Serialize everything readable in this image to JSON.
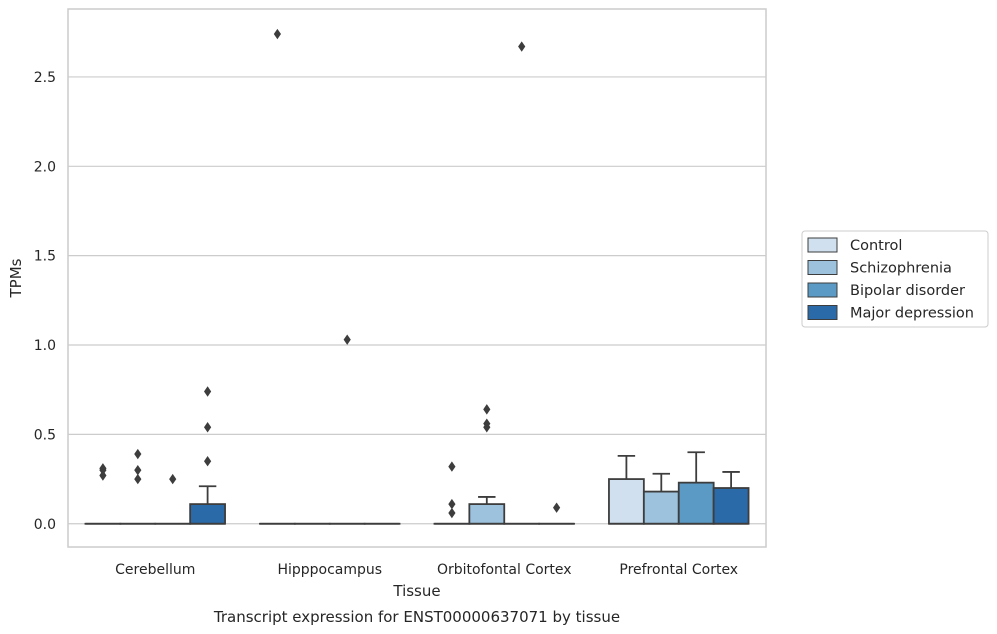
{
  "chart_data": {
    "type": "box",
    "caption": "Transcript expression for ENST00000637071 by tissue",
    "xlabel": "Tissue",
    "ylabel": "TPMs",
    "ylim": [
      -0.13,
      2.88
    ],
    "yticks": [
      0.0,
      0.5,
      1.0,
      1.5,
      2.0,
      2.5
    ],
    "ytick_labels": [
      "0.0",
      "0.5",
      "1.0",
      "1.5",
      "2.0",
      "2.5"
    ],
    "grid": "horizontal",
    "legend_position": "center-right",
    "categories": [
      "Cerebellum",
      "Hipppocampus",
      "Orbitofontal Cortex",
      "Prefrontal Cortex"
    ],
    "series": [
      {
        "name": "Control",
        "color": "#d0e0ee",
        "boxes": [
          {
            "q1": 0.0,
            "median": 0.0,
            "q3": 0.0,
            "whislo": 0.0,
            "whishi": 0.0,
            "fliers": [
              0.27,
              0.31,
              0.3
            ]
          },
          {
            "q1": 0.0,
            "median": 0.0,
            "q3": 0.0,
            "whislo": 0.0,
            "whishi": 0.0,
            "fliers": [
              2.74
            ]
          },
          {
            "q1": 0.0,
            "median": 0.0,
            "q3": 0.0,
            "whislo": 0.0,
            "whishi": 0.0,
            "fliers": [
              0.32,
              0.06,
              0.11
            ]
          },
          {
            "q1": 0.0,
            "median": 0.0,
            "q3": 0.25,
            "whislo": 0.0,
            "whishi": 0.38,
            "fliers": []
          }
        ]
      },
      {
        "name": "Schizophrenia",
        "color": "#9cc2dd",
        "boxes": [
          {
            "q1": 0.0,
            "median": 0.0,
            "q3": 0.0,
            "whislo": 0.0,
            "whishi": 0.0,
            "fliers": [
              0.39,
              0.3,
              0.25
            ]
          },
          {
            "q1": 0.0,
            "median": 0.0,
            "q3": 0.0,
            "whislo": 0.0,
            "whishi": 0.0,
            "fliers": []
          },
          {
            "q1": 0.0,
            "median": 0.0,
            "q3": 0.11,
            "whislo": 0.0,
            "whishi": 0.15,
            "fliers": [
              0.64,
              0.56,
              0.54
            ]
          },
          {
            "q1": 0.0,
            "median": 0.0,
            "q3": 0.18,
            "whislo": 0.0,
            "whishi": 0.28,
            "fliers": []
          }
        ]
      },
      {
        "name": "Bipolar disorder",
        "color": "#5b9ac5",
        "boxes": [
          {
            "q1": 0.0,
            "median": 0.0,
            "q3": 0.0,
            "whislo": 0.0,
            "whishi": 0.0,
            "fliers": [
              0.25
            ]
          },
          {
            "q1": 0.0,
            "median": 0.0,
            "q3": 0.0,
            "whislo": 0.0,
            "whishi": 0.0,
            "fliers": [
              1.03
            ]
          },
          {
            "q1": 0.0,
            "median": 0.0,
            "q3": 0.0,
            "whislo": 0.0,
            "whishi": 0.0,
            "fliers": [
              2.67
            ]
          },
          {
            "q1": 0.0,
            "median": 0.0,
            "q3": 0.23,
            "whislo": 0.0,
            "whishi": 0.4,
            "fliers": []
          }
        ]
      },
      {
        "name": "Major depression",
        "color": "#2b6aa8",
        "boxes": [
          {
            "q1": 0.0,
            "median": 0.0,
            "q3": 0.11,
            "whislo": 0.0,
            "whishi": 0.21,
            "fliers": [
              0.74,
              0.54,
              0.35
            ]
          },
          {
            "q1": 0.0,
            "median": 0.0,
            "q3": 0.0,
            "whislo": 0.0,
            "whishi": 0.0,
            "fliers": []
          },
          {
            "q1": 0.0,
            "median": 0.0,
            "q3": 0.0,
            "whislo": 0.0,
            "whishi": 0.0,
            "fliers": [
              0.09
            ]
          },
          {
            "q1": 0.0,
            "median": 0.0,
            "q3": 0.2,
            "whislo": 0.0,
            "whishi": 0.29,
            "fliers": []
          }
        ]
      }
    ]
  }
}
